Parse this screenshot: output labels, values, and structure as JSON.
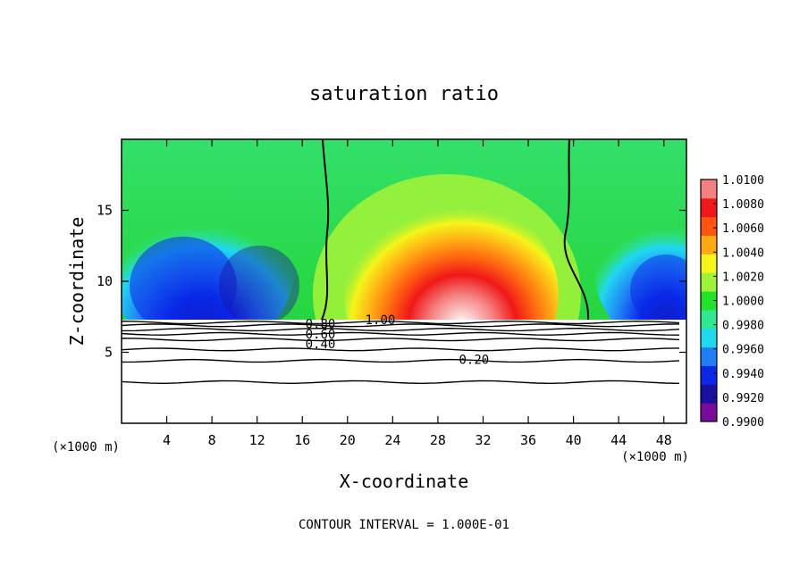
{
  "chart_data": {
    "type": "heatmap",
    "title": "saturation ratio",
    "xlabel": "X-coordinate",
    "ylabel": "Z-coordinate",
    "x_unit_left": "(×1000 m)",
    "x_unit_right": "(×1000 m)",
    "footer": "CONTOUR INTERVAL = 1.000E-01",
    "xlim": [
      0,
      50
    ],
    "ylim": [
      0,
      20
    ],
    "x_ticks": [
      4,
      8,
      12,
      16,
      20,
      24,
      28,
      32,
      36,
      40,
      44,
      48
    ],
    "y_ticks": [
      5,
      10,
      15
    ],
    "colorbar": {
      "min": 0.99,
      "max": 1.01,
      "labels": [
        "1.0100",
        "1.0080",
        "1.0060",
        "1.0040",
        "1.0020",
        "1.0000",
        "0.9980",
        "0.9960",
        "0.9940",
        "0.9920",
        "0.9900"
      ],
      "colors": [
        "#7a0a9a",
        "#1a10a0",
        "#0a28e8",
        "#1f7ff5",
        "#20d8f0",
        "#30e890",
        "#22e22a",
        "#9ff23a",
        "#f5f51a",
        "#ffaa14",
        "#ff5510",
        "#f01818",
        "#f58080"
      ]
    },
    "cloud_base_z": 7.2,
    "contour_labels": [
      {
        "text": "0.20",
        "x": 31.2,
        "z": 4.5
      },
      {
        "text": "0.40",
        "x": 17.6,
        "z": 5.6
      },
      {
        "text": "0.60",
        "x": 17.6,
        "z": 6.3
      },
      {
        "text": "0.80",
        "x": 17.6,
        "z": 7.0
      },
      {
        "text": "1.00",
        "x": 22.9,
        "z": 7.3
      }
    ],
    "contour_lines_z": [
      2.9,
      4.4,
      5.2,
      5.9,
      6.3,
      6.6,
      6.9,
      7.1
    ]
  }
}
